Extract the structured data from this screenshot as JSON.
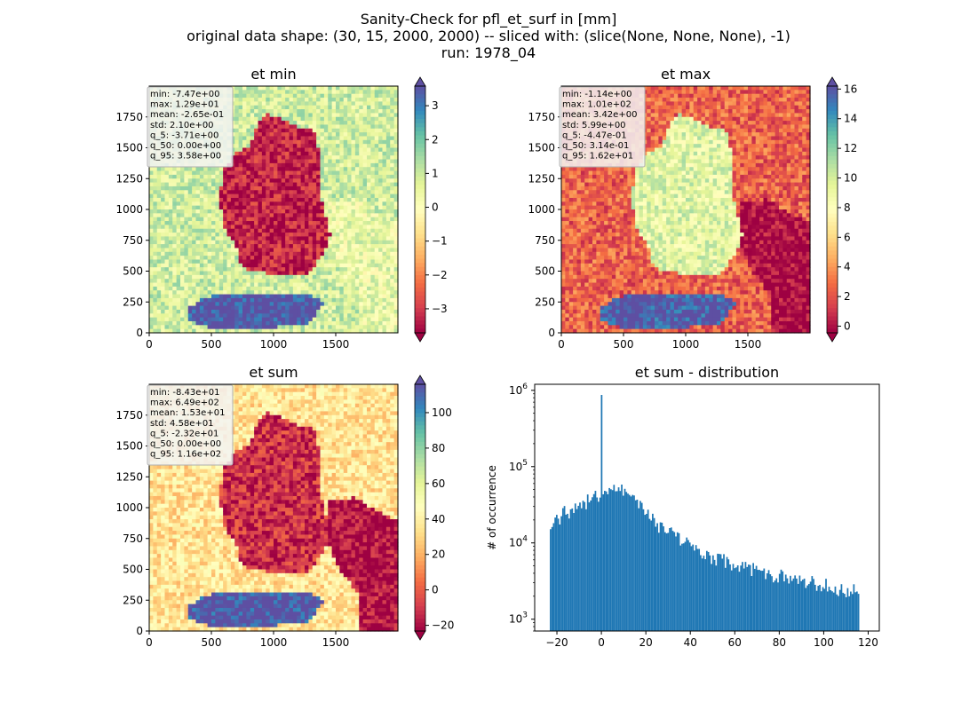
{
  "figure": {
    "title_lines": [
      "Sanity-Check for pfl_et_surf in [mm]",
      "original data shape: (30, 15, 2000, 2000) -- sliced with: (slice(None, None, None), -1)",
      "run: 1978_04"
    ]
  },
  "chart_data": [
    {
      "type": "heatmap",
      "title": "et min",
      "xlim": [
        0,
        2000
      ],
      "ylim": [
        0,
        2000
      ],
      "xticks": [
        0,
        500,
        1000,
        1500
      ],
      "yticks": [
        0,
        250,
        500,
        750,
        1000,
        1250,
        1500,
        1750
      ],
      "colormap": "Spectral",
      "colorbar": {
        "min": -3.71,
        "max": 3.58,
        "ticks": [
          -3,
          -2,
          -1,
          0,
          1,
          2,
          3
        ],
        "extend": "both"
      },
      "stats": [
        "min: -7.47e+00",
        "max: 1.29e+01",
        "mean: -2.65e-01",
        "std: 2.10e+00",
        "q_5: -3.71e+00",
        "q_50: 0.00e+00",
        "q_95: 3.58e+00"
      ],
      "fields": {
        "background": 0.9,
        "land": -3.3,
        "alps": 3.6,
        "east": 0.5
      }
    },
    {
      "type": "heatmap",
      "title": "et max",
      "xlim": [
        0,
        2000
      ],
      "ylim": [
        0,
        2000
      ],
      "xticks": [
        0,
        500,
        1000,
        1500
      ],
      "yticks": [
        0,
        250,
        500,
        750,
        1000,
        1250,
        1500,
        1750
      ],
      "colormap": "Spectral",
      "colorbar": {
        "min": -0.447,
        "max": 16.2,
        "ticks": [
          0,
          2,
          4,
          6,
          8,
          10,
          12,
          14,
          16
        ],
        "extend": "both"
      },
      "stats": [
        "min: -1.14e+00",
        "max: 1.01e+02",
        "mean: 3.42e+00",
        "std: 5.99e+00",
        "q_5: -4.47e-01",
        "q_50: 3.14e-01",
        "q_95: 1.62e+01"
      ],
      "fields": {
        "background": 2.5,
        "land": 9.5,
        "alps": 16.0,
        "east": -0.4
      }
    },
    {
      "type": "heatmap",
      "title": "et sum",
      "xlim": [
        0,
        2000
      ],
      "ylim": [
        0,
        2000
      ],
      "xticks": [
        0,
        500,
        1000,
        1500
      ],
      "yticks": [
        0,
        250,
        500,
        750,
        1000,
        1250,
        1500,
        1750
      ],
      "colormap": "Spectral",
      "colorbar": {
        "min": -23.2,
        "max": 116,
        "ticks": [
          -20,
          0,
          20,
          40,
          60,
          80,
          100
        ],
        "extend": "both"
      },
      "stats": [
        "min: -8.43e+01",
        "max: 6.49e+02",
        "mean: 1.53e+01",
        "std: 4.58e+01",
        "q_5: -2.32e+01",
        "q_50: 0.00e+00",
        "q_95: 1.16e+02"
      ],
      "fields": {
        "background": 35,
        "land": -12,
        "alps": 116,
        "east": -20
      }
    },
    {
      "type": "bar",
      "title": "et sum - distribution",
      "xlabel": "",
      "ylabel": "# of occurrence",
      "xlim": [
        -30,
        125
      ],
      "ylim": [
        700,
        1200000
      ],
      "yscale": "log",
      "xticks": [
        -20,
        0,
        20,
        40,
        60,
        80,
        100,
        120
      ],
      "yticks": [
        {
          "value": 1000,
          "base": "10",
          "exp": "3"
        },
        {
          "value": 10000,
          "base": "10",
          "exp": "4"
        },
        {
          "value": 100000,
          "base": "10",
          "exp": "5"
        },
        {
          "value": 1000000,
          "base": "10",
          "exp": "6"
        }
      ],
      "range": [
        -23.2,
        116
      ],
      "bins": 200,
      "peak": {
        "x": 0,
        "count": 870000
      },
      "values": [
        17000,
        25000,
        30000,
        38000,
        45000,
        54000,
        40000,
        23000,
        16000,
        12000,
        9500,
        7500,
        6200,
        5300,
        4700,
        4200,
        3800,
        3500,
        3200,
        2900,
        2700,
        2500,
        2300
      ]
    }
  ]
}
